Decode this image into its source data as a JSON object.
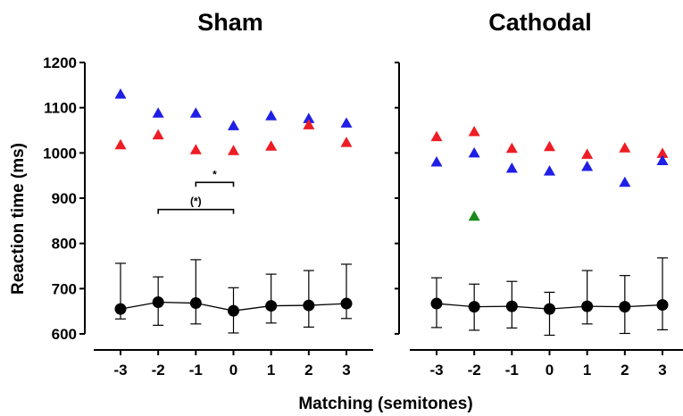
{
  "ylabel": "Reaction time (ms)",
  "xlabel": "Matching (semitones)",
  "colors": {
    "red": "#ee1c24",
    "blue": "#1f1fe6",
    "green": "#1a8a1a",
    "black": "#000000"
  },
  "chart_data": [
    {
      "type": "scatter",
      "title": "Sham",
      "x": [
        -3,
        -2,
        -1,
        0,
        1,
        2,
        3
      ],
      "xticks": [
        "-3",
        "-2",
        "-1",
        "0",
        "1",
        "2",
        "3"
      ],
      "ylim": [
        600,
        1200
      ],
      "yticks": [
        "600",
        "700",
        "800",
        "900",
        "1000",
        "1100",
        "1200"
      ],
      "series": [
        {
          "color": "blue",
          "marker": "triangle",
          "points": [
            [
              -3,
              1130
            ],
            [
              -2,
              1088
            ],
            [
              -1,
              1088
            ],
            [
              0,
              1060
            ],
            [
              1,
              1082
            ],
            [
              2,
              1076
            ],
            [
              3,
              1066
            ]
          ]
        },
        {
          "color": "red",
          "marker": "triangle",
          "points": [
            [
              -3,
              1018
            ],
            [
              -2,
              1040
            ],
            [
              -1,
              1007
            ],
            [
              0,
              1005
            ],
            [
              1,
              1015
            ],
            [
              2,
              1062
            ],
            [
              3,
              1023
            ]
          ]
        },
        {
          "color": "black",
          "marker": "circle",
          "connected": true,
          "points": [
            [
              -3,
              655
            ],
            [
              -2,
              670
            ],
            [
              -1,
              668
            ],
            [
              0,
              651
            ],
            [
              1,
              662
            ],
            [
              2,
              663
            ],
            [
              3,
              667
            ]
          ],
          "err_low": [
            633,
            619,
            622,
            602,
            624,
            615,
            634
          ],
          "err_high": [
            756,
            726,
            764,
            702,
            732,
            740,
            754
          ]
        }
      ],
      "annotations": [
        {
          "text": "*",
          "from": -1,
          "to": 0,
          "y": 935
        },
        {
          "text": "(*)",
          "from": -2,
          "to": 0,
          "y": 875
        }
      ]
    },
    {
      "type": "scatter",
      "title": "Cathodal",
      "x": [
        -3,
        -2,
        -1,
        0,
        1,
        2,
        3
      ],
      "xticks": [
        "-3",
        "-2",
        "-1",
        "0",
        "1",
        "2",
        "3"
      ],
      "ylim": [
        600,
        1200
      ],
      "series": [
        {
          "color": "red",
          "marker": "triangle",
          "points": [
            [
              -3,
              1036
            ],
            [
              -2,
              1047
            ],
            [
              -1,
              1010
            ],
            [
              0,
              1014
            ],
            [
              1,
              997
            ],
            [
              2,
              1011
            ],
            [
              3,
              999
            ]
          ]
        },
        {
          "color": "blue",
          "marker": "triangle",
          "points": [
            [
              -3,
              980
            ],
            [
              -2,
              1000
            ],
            [
              -1,
              966
            ],
            [
              0,
              960
            ],
            [
              1,
              970
            ],
            [
              2,
              935
            ],
            [
              3,
              983
            ]
          ]
        },
        {
          "color": "green",
          "marker": "triangle",
          "points": [
            [
              -2,
              860
            ]
          ]
        },
        {
          "color": "black",
          "marker": "circle",
          "connected": true,
          "points": [
            [
              -3,
              667
            ],
            [
              -2,
              660
            ],
            [
              -1,
              661
            ],
            [
              0,
              655
            ],
            [
              1,
              661
            ],
            [
              2,
              660
            ],
            [
              3,
              664
            ]
          ],
          "err_low": [
            614,
            608,
            613,
            597,
            622,
            601,
            609
          ],
          "err_high": [
            724,
            710,
            716,
            692,
            740,
            729,
            768
          ]
        }
      ]
    }
  ]
}
